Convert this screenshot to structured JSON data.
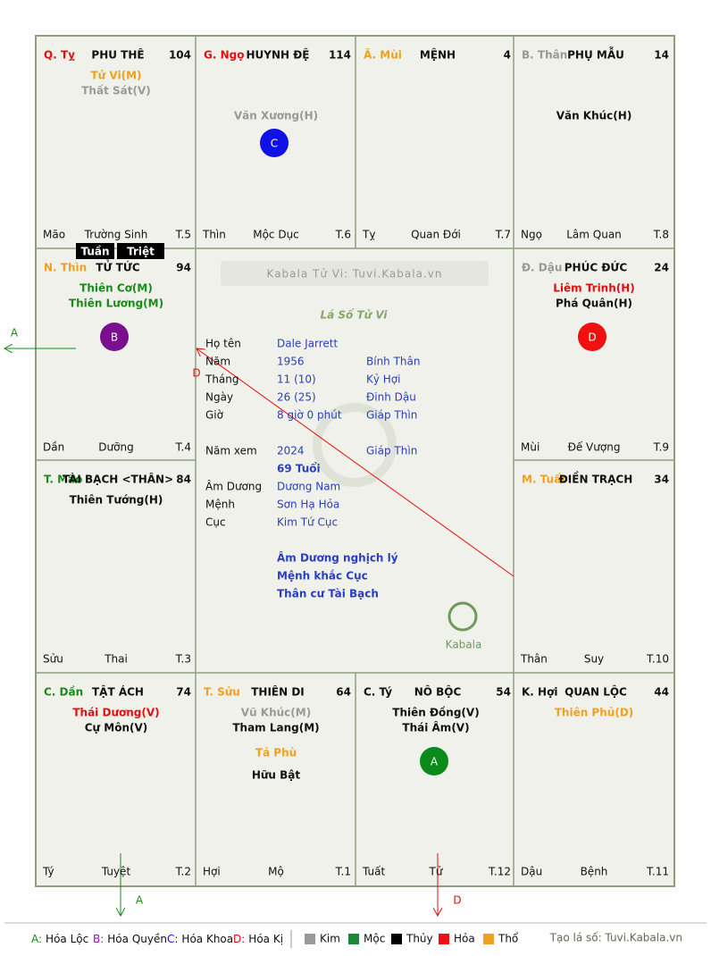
{
  "cells": [
    {
      "branch": "Q. Tỵ",
      "branch_color": "#e01010",
      "name": "PHU THÊ",
      "number": "104",
      "stars": [
        {
          "text": "Tử Vi(M)",
          "color": "#f0a020"
        },
        {
          "text": "Thất Sát(V)",
          "color": "#999999"
        }
      ],
      "bottom": [
        "Mão",
        "Trường Sinh",
        "T.5"
      ]
    },
    {
      "branch": "G. Ngọ",
      "branch_color": "#e01010",
      "name": "HUYNH ĐỆ",
      "number": "114",
      "minor": [
        {
          "text": "Văn Xương(H)",
          "color": "#999999"
        }
      ],
      "mark": {
        "letter": "C",
        "color": "#1010e8"
      },
      "bottom": [
        "Thìn",
        "Mộc Dục",
        "T.6"
      ]
    },
    {
      "branch": "Ã. Mùi",
      "branch_color": "#f0a020",
      "name": "MỆNH",
      "number": "4",
      "bottom": [
        "Tỵ",
        "Quan Đới",
        "T.7"
      ]
    },
    {
      "branch": "B. Thân",
      "branch_color": "#999999",
      "name": "PHỤ MẪU",
      "number": "14",
      "minor": [
        {
          "text": "Văn Khúc(H)",
          "color": "#111111"
        }
      ],
      "bottom": [
        "Ngọ",
        "Lâm Quan",
        "T.8"
      ]
    },
    {
      "branch": "N. Thìn",
      "branch_color": "#f0a020",
      "name": "TỬ TỨC",
      "number": "94",
      "stars": [
        {
          "text": "Thiên Cơ(M)",
          "color": "#1a8a1a"
        },
        {
          "text": "Thiên Lương(M)",
          "color": "#1a8a1a"
        }
      ],
      "mark": {
        "letter": "B",
        "color": "#7a1090"
      },
      "bottom": [
        "Dần",
        "Dưỡng",
        "T.4"
      ]
    },
    {
      "branch": "Đ. Dậu",
      "branch_color": "#999999",
      "name": "PHÚC ĐỨC",
      "number": "24",
      "stars": [
        {
          "text": "Liêm Trinh(H)",
          "color": "#e01010"
        },
        {
          "text": "Phá Quân(H)",
          "color": "#111111"
        }
      ],
      "mark": {
        "letter": "D",
        "color": "#f01010"
      },
      "bottom": [
        "Mùi",
        "Đế Vượng",
        "T.9"
      ]
    },
    {
      "branch": "T. Mão",
      "branch_color": "#1a8a1a",
      "name": "TÀI BẠCH <THÂN>",
      "number": "84",
      "stars": [
        {
          "text": "Thiên Tướng(H)",
          "color": "#111111"
        }
      ],
      "bottom": [
        "Sửu",
        "Thai",
        "T.3"
      ]
    },
    {
      "branch": "M. Tuất",
      "branch_color": "#f0a020",
      "name": "ĐIỀN TRẠCH",
      "number": "34",
      "bottom": [
        "Thân",
        "Suy",
        "T.10"
      ]
    },
    {
      "branch": "C. Dần",
      "branch_color": "#1a8a1a",
      "name": "TẬT ÁCH",
      "number": "74",
      "stars": [
        {
          "text": "Thái Dương(V)",
          "color": "#e01010"
        },
        {
          "text": "Cự Môn(V)",
          "color": "#111111"
        }
      ],
      "bottom": [
        "Tý",
        "Tuyệt",
        "T.2"
      ]
    },
    {
      "branch": "T. Sửu",
      "branch_color": "#f0a020",
      "name": "THIÊN DI",
      "number": "64",
      "stars": [
        {
          "text": "Vũ Khúc(M)",
          "color": "#999999"
        },
        {
          "text": "Tham Lang(M)",
          "color": "#111111"
        }
      ],
      "minor": [
        {
          "text": "Tả Phù",
          "color": "#f0a020"
        },
        {
          "text": "Hữu Bật",
          "color": "#111111"
        }
      ],
      "bottom": [
        "Hợi",
        "Mộ",
        "T.1"
      ]
    },
    {
      "branch": "C. Tý",
      "branch_color": "#111111",
      "name": "NÔ BỘC",
      "number": "54",
      "stars": [
        {
          "text": "Thiên Đồng(V)",
          "color": "#111111"
        },
        {
          "text": "Thái Âm(V)",
          "color": "#111111"
        }
      ],
      "mark": {
        "letter": "A",
        "color": "#0a8a1a"
      },
      "bottom": [
        "Tuất",
        "Tử",
        "T.12"
      ]
    },
    {
      "branch": "K. Hợi",
      "branch_color": "#111111",
      "name": "QUAN LỘC",
      "number": "44",
      "stars": [
        {
          "text": "Thiên Phủ(D)",
          "color": "#f0a020"
        }
      ],
      "bottom": [
        "Dậu",
        "Bệnh",
        "T.11"
      ]
    }
  ],
  "tags": [
    "Tuần",
    "Triệt"
  ],
  "center": {
    "watermark": "Kabala Tử Vi: Tuvi.Kabala.vn",
    "title": "Lá Số Tử Vi",
    "info": [
      {
        "label": "Họ tên",
        "value": "Dale Jarrett"
      },
      {
        "label": "Năm",
        "value": "1956",
        "extra": "Bính Thân"
      },
      {
        "label": "Tháng",
        "value": "11  (10)",
        "extra": "Kỷ Hợi"
      },
      {
        "label": "Ngày",
        "value": "26  (25)",
        "extra": "Đinh Dậu"
      },
      {
        "label": "Giờ",
        "value": "8 giờ 0 phút",
        "extra": "Giáp Thìn"
      },
      {
        "label": "Năm xem",
        "value": "2024",
        "extra": "Giáp Thìn"
      },
      {
        "value": "69 Tuổi"
      },
      {
        "label": "Âm Dương",
        "value": "Dương Nam"
      },
      {
        "label": "Mệnh",
        "value": "Sơn Hạ Hỏa"
      },
      {
        "label": "Cục",
        "value": "Kim Tứ Cục"
      }
    ],
    "notes": [
      "Âm Dương nghịch lý",
      "Mệnh khắc Cục",
      "Thân cư Tài Bạch"
    ],
    "logo": "Kabala"
  },
  "arrows": [
    "A",
    "D",
    "A",
    "D"
  ],
  "legend": [
    {
      "key": "A:",
      "label": "Hóa Lộc",
      "color": "#1a8a1a"
    },
    {
      "key": "B:",
      "label": "Hóa Quyền",
      "color": "#8a1aa0"
    },
    {
      "key": "C:",
      "label": "Hóa Khoa",
      "color": "#1010d0"
    },
    {
      "key": "D:",
      "label": "Hóa Kị",
      "color": "#e01010"
    }
  ],
  "elements": [
    {
      "label": "Kim",
      "color": "#999999"
    },
    {
      "label": "Mộc",
      "color": "#1a8a3a"
    },
    {
      "label": "Thủy",
      "color": "#000000"
    },
    {
      "label": "Hỏa",
      "color": "#f01010"
    },
    {
      "label": "Thổ",
      "color": "#f0a020"
    }
  ],
  "credit": "Tạo lá số: Tuvi.Kabala.vn"
}
